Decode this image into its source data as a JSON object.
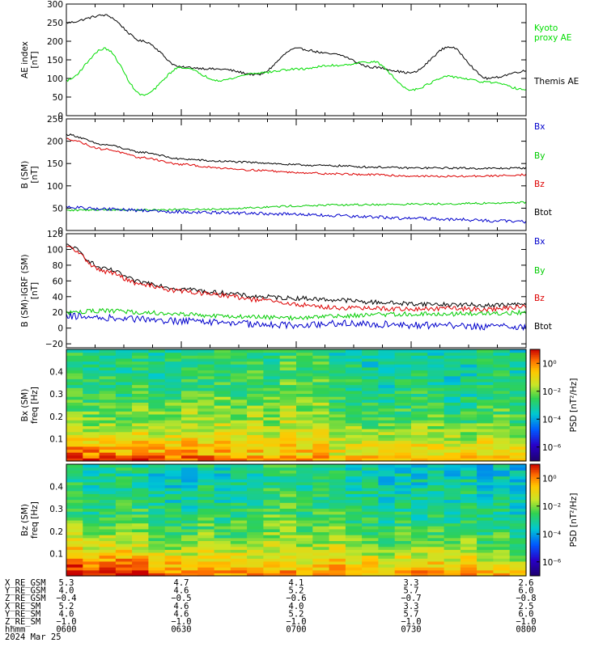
{
  "panels": [
    {
      "id": "ae",
      "ylabel_lines": [
        "AE index",
        "[nT]"
      ],
      "ylim": [
        0,
        300
      ],
      "yticks": [
        0,
        50,
        100,
        150,
        200,
        250,
        300
      ],
      "legend": [
        {
          "name": "Kyoto proxy AE",
          "lines": [
            "Kyoto",
            "proxy AE"
          ],
          "color": "#00dd00"
        },
        {
          "name": "Themis AE",
          "lines": [
            "Themis AE"
          ],
          "color": "#000000"
        }
      ]
    },
    {
      "id": "bsm",
      "ylabel_lines": [
        "B (SM)",
        "[nT]"
      ],
      "ylim": [
        0,
        250
      ],
      "yticks": [
        0,
        50,
        100,
        150,
        200,
        250
      ],
      "legend": [
        {
          "name": "Bx",
          "lines": [
            "Bx"
          ],
          "color": "#0000cc"
        },
        {
          "name": "By",
          "lines": [
            "By"
          ],
          "color": "#00cc00"
        },
        {
          "name": "Bz",
          "lines": [
            "Bz"
          ],
          "color": "#dd0000"
        },
        {
          "name": "Btot",
          "lines": [
            "Btot"
          ],
          "color": "#000000"
        }
      ]
    },
    {
      "id": "bigrf",
      "ylabel_lines": [
        "B (SM)-IGRF (SM)",
        "[nT]"
      ],
      "ylim": [
        -25,
        120
      ],
      "yticks": [
        -20,
        0,
        20,
        40,
        60,
        80,
        100,
        120
      ],
      "legend": [
        {
          "name": "Bx",
          "lines": [
            "Bx"
          ],
          "color": "#0000cc"
        },
        {
          "name": "By",
          "lines": [
            "By"
          ],
          "color": "#00cc00"
        },
        {
          "name": "Bz",
          "lines": [
            "Bz"
          ],
          "color": "#dd0000"
        },
        {
          "name": "Btot",
          "lines": [
            "Btot"
          ],
          "color": "#000000"
        }
      ]
    },
    {
      "id": "bxspec",
      "ylabel_lines": [
        "Bx (SM)",
        "freq  [Hz]"
      ],
      "ylim": [
        0,
        0.5
      ],
      "yticks": [
        0.1,
        0.2,
        0.3,
        0.4
      ],
      "ytick_labels": [
        "0.1",
        "0.2",
        "0.3",
        "0.4"
      ],
      "colorbar": {
        "label": "PSD [nT²/Hz]",
        "ticks": [
          "10⁰",
          "10⁻²",
          "10⁻⁴",
          "10⁻⁶"
        ]
      }
    },
    {
      "id": "bzspec",
      "ylabel_lines": [
        "Bz (SM)",
        "freq  [Hz]"
      ],
      "ylim": [
        0,
        0.5
      ],
      "yticks": [
        0.1,
        0.2,
        0.3,
        0.4
      ],
      "ytick_labels": [
        "0.1",
        "0.2",
        "0.3",
        "0.4"
      ],
      "colorbar": {
        "label": "PSD [nT²/Hz]",
        "ticks": [
          "10⁰",
          "10⁻²",
          "10⁻⁴",
          "10⁻⁶"
        ]
      }
    }
  ],
  "footer": {
    "rows": [
      {
        "label": "X_RE_GSM",
        "values": [
          "5.3",
          "4.7",
          "4.1",
          "3.3",
          "2.6"
        ]
      },
      {
        "label": "Y_RE_GSM",
        "values": [
          "4.0",
          "4.6",
          "5.2",
          "5.7",
          "6.0"
        ]
      },
      {
        "label": "Z_RE_GSM",
        "values": [
          "−0.4",
          "−0.5",
          "−0.6",
          "−0.7",
          "−0.8"
        ]
      },
      {
        "label": "X_RE_SM",
        "values": [
          "5.2",
          "4.6",
          "4.0",
          "3.3",
          "2.5"
        ]
      },
      {
        "label": "Y_RE_SM",
        "values": [
          "4.0",
          "4.6",
          "5.2",
          "5.7",
          "6.0"
        ]
      },
      {
        "label": "Z_RE_SM",
        "values": [
          "−1.0",
          "−1.0",
          "−1.0",
          "−1.0",
          "−1.0"
        ]
      },
      {
        "label": "hhmm",
        "values": [
          "0600",
          "0630",
          "0700",
          "0730",
          "0800"
        ]
      }
    ],
    "date": "2024 Mar 25"
  },
  "chart_data": [
    {
      "type": "line",
      "panel": "AE index",
      "x_label": "hhmm",
      "x": [
        "0600",
        "0610",
        "0620",
        "0630",
        "0640",
        "0650",
        "0700",
        "0710",
        "0720",
        "0730",
        "0740",
        "0750",
        "0800"
      ],
      "ylabel": "AE index [nT]",
      "ylim": [
        0,
        300
      ],
      "series": [
        {
          "name": "Themis AE",
          "color": "#000000",
          "values": [
            250,
            270,
            200,
            130,
            125,
            110,
            180,
            165,
            130,
            115,
            185,
            100,
            120
          ]
        },
        {
          "name": "Kyoto proxy AE",
          "color": "#00dd00",
          "values": [
            95,
            180,
            55,
            130,
            95,
            115,
            125,
            135,
            145,
            70,
            105,
            90,
            70
          ]
        }
      ]
    },
    {
      "type": "line",
      "panel": "B (SM)",
      "x": [
        "0600",
        "0610",
        "0620",
        "0630",
        "0640",
        "0650",
        "0700",
        "0710",
        "0720",
        "0730",
        "0740",
        "0750",
        "0800"
      ],
      "ylabel": "B (SM) [nT]",
      "ylim": [
        0,
        250
      ],
      "series": [
        {
          "name": "Btot",
          "color": "#000000",
          "values": [
            215,
            192,
            175,
            160,
            155,
            152,
            147,
            145,
            142,
            140,
            140,
            139,
            140
          ]
        },
        {
          "name": "Bz",
          "color": "#dd0000",
          "values": [
            205,
            182,
            163,
            148,
            140,
            135,
            130,
            127,
            125,
            122,
            121,
            122,
            125
          ]
        },
        {
          "name": "By",
          "color": "#00cc00",
          "values": [
            45,
            47,
            46,
            47,
            48,
            52,
            55,
            57,
            58,
            59,
            60,
            61,
            63
          ]
        },
        {
          "name": "Bx",
          "color": "#0000cc",
          "values": [
            52,
            48,
            45,
            42,
            40,
            38,
            36,
            33,
            30,
            27,
            25,
            22,
            20
          ]
        }
      ]
    },
    {
      "type": "line",
      "panel": "B (SM)-IGRF (SM)",
      "x": [
        "0600",
        "0610",
        "0620",
        "0630",
        "0640",
        "0650",
        "0700",
        "0710",
        "0720",
        "0730",
        "0740",
        "0750",
        "0800"
      ],
      "ylabel": "B (SM)-IGRF (SM) [nT]",
      "ylim": [
        -25,
        120
      ],
      "series": [
        {
          "name": "Btot",
          "color": "#000000",
          "values": [
            105,
            75,
            58,
            50,
            45,
            40,
            38,
            36,
            33,
            31,
            30,
            29,
            30
          ]
        },
        {
          "name": "Bz",
          "color": "#dd0000",
          "values": [
            103,
            72,
            55,
            47,
            42,
            36,
            30,
            26,
            25,
            24,
            25,
            24,
            27
          ]
        },
        {
          "name": "By",
          "color": "#00cc00",
          "values": [
            20,
            22,
            20,
            18,
            15,
            14,
            13,
            15,
            17,
            18,
            18,
            19,
            20
          ]
        },
        {
          "name": "Bx",
          "color": "#0000cc",
          "values": [
            15,
            13,
            11,
            9,
            7,
            5,
            4,
            6,
            5,
            4,
            3,
            2,
            2
          ]
        }
      ]
    },
    {
      "type": "heatmap",
      "panel": "Bx (SM) dynamic spectrum",
      "ylabel": "freq [Hz]",
      "ylim": [
        0,
        0.5
      ],
      "colorbar_label": "PSD [nT²/Hz]",
      "colorbar_range_log10": [
        -7,
        1
      ],
      "x": [
        "0600",
        "0630",
        "0700",
        "0730",
        "0800"
      ],
      "frequency_bands": [
        0.05,
        0.15,
        0.25,
        0.35,
        0.45
      ],
      "log10_psd": [
        [
          0.2,
          -0.6,
          -0.8,
          -0.9,
          -1.1
        ],
        [
          -1.6,
          -1.7,
          -1.6,
          -2.0,
          -2.3
        ],
        [
          -2.3,
          -2.4,
          -2.0,
          -2.8,
          -2.8
        ],
        [
          -2.6,
          -2.8,
          -2.4,
          -3.1,
          -3.1
        ],
        [
          -2.8,
          -3.0,
          -2.6,
          -3.3,
          -3.3
        ]
      ]
    },
    {
      "type": "heatmap",
      "panel": "Bz (SM) dynamic spectrum",
      "ylabel": "freq [Hz]",
      "ylim": [
        0,
        0.5
      ],
      "colorbar_label": "PSD [nT²/Hz]",
      "colorbar_range_log10": [
        -7,
        1
      ],
      "x": [
        "0600",
        "0630",
        "0700",
        "0730",
        "0800"
      ],
      "frequency_bands": [
        0.05,
        0.15,
        0.25,
        0.35,
        0.45
      ],
      "log10_psd": [
        [
          0.4,
          -0.5,
          -0.6,
          -0.9,
          -1.1
        ],
        [
          -1.3,
          -2.2,
          -1.6,
          -2.4,
          -2.5
        ],
        [
          -2.3,
          -2.8,
          -2.1,
          -3.0,
          -3.0
        ],
        [
          -2.8,
          -3.2,
          -2.5,
          -3.3,
          -3.3
        ],
        [
          -3.0,
          -3.4,
          -2.7,
          -3.5,
          -3.5
        ]
      ]
    }
  ]
}
